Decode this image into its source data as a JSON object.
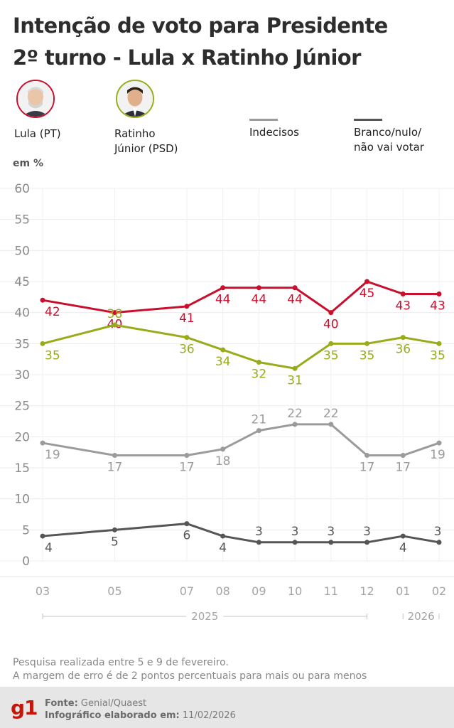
{
  "title": {
    "line1": "Intenção de voto para Presidente",
    "line2": "2º turno - Lula x Ratinho Júnior"
  },
  "legend": [
    {
      "label": "Lula (PT)",
      "color": "#c8102e",
      "type": "avatar",
      "icon": "lula-photo-icon"
    },
    {
      "label": "Ratinho Júnior (PSD)",
      "line1": "Ratinho",
      "line2": "Júnior (PSD)",
      "color": "#9aab1a",
      "type": "avatar",
      "icon": "ratinho-photo-icon"
    },
    {
      "label": "Indecisos",
      "color": "#9b9b9b",
      "type": "line"
    },
    {
      "label": "Branco/nulo/não vai votar",
      "line1": "Branco/nulo/",
      "line2": "não vai votar",
      "color": "#555555",
      "type": "line"
    }
  ],
  "chart_data": {
    "type": "line",
    "ylabel": "em %",
    "ylim": [
      0,
      60
    ],
    "yticks": [
      0,
      5,
      10,
      15,
      20,
      25,
      30,
      35,
      40,
      45,
      50,
      55,
      60
    ],
    "grid": true,
    "categories": [
      "03",
      "05",
      "07",
      "08",
      "09",
      "10",
      "11",
      "12",
      "01",
      "02"
    ],
    "x_month_index": [
      3,
      5,
      7,
      8,
      9,
      10,
      11,
      12,
      13,
      14
    ],
    "years": [
      {
        "label": "2025",
        "from": "03",
        "to": "12"
      },
      {
        "label": "2026",
        "from": "01",
        "to": "02"
      }
    ],
    "series": [
      {
        "name": "Lula (PT)",
        "color": "#c8102e",
        "values": [
          42,
          40,
          41,
          44,
          44,
          44,
          40,
          45,
          43,
          43
        ]
      },
      {
        "name": "Ratinho Júnior (PSD)",
        "color": "#9aab1a",
        "values": [
          35,
          38,
          36,
          34,
          32,
          31,
          35,
          35,
          36,
          35
        ]
      },
      {
        "name": "Indecisos",
        "color": "#9b9b9b",
        "values": [
          19,
          17,
          17,
          18,
          21,
          22,
          22,
          17,
          17,
          19
        ]
      },
      {
        "name": "Branco/nulo/não vai votar",
        "color": "#555555",
        "values": [
          4,
          5,
          6,
          4,
          3,
          3,
          3,
          3,
          4,
          3
        ]
      }
    ]
  },
  "notes": {
    "line1": "Pesquisa realizada entre 5 e 9 de fevereiro.",
    "line2": "A margem de erro é de 2 pontos percentuais para mais ou para menos"
  },
  "footer": {
    "logo": "g1",
    "source_label": "Fonte:",
    "source_value": "Genial/Quaest",
    "made_label": "Infográfico elaborado em:",
    "made_value": "11/02/2026"
  }
}
